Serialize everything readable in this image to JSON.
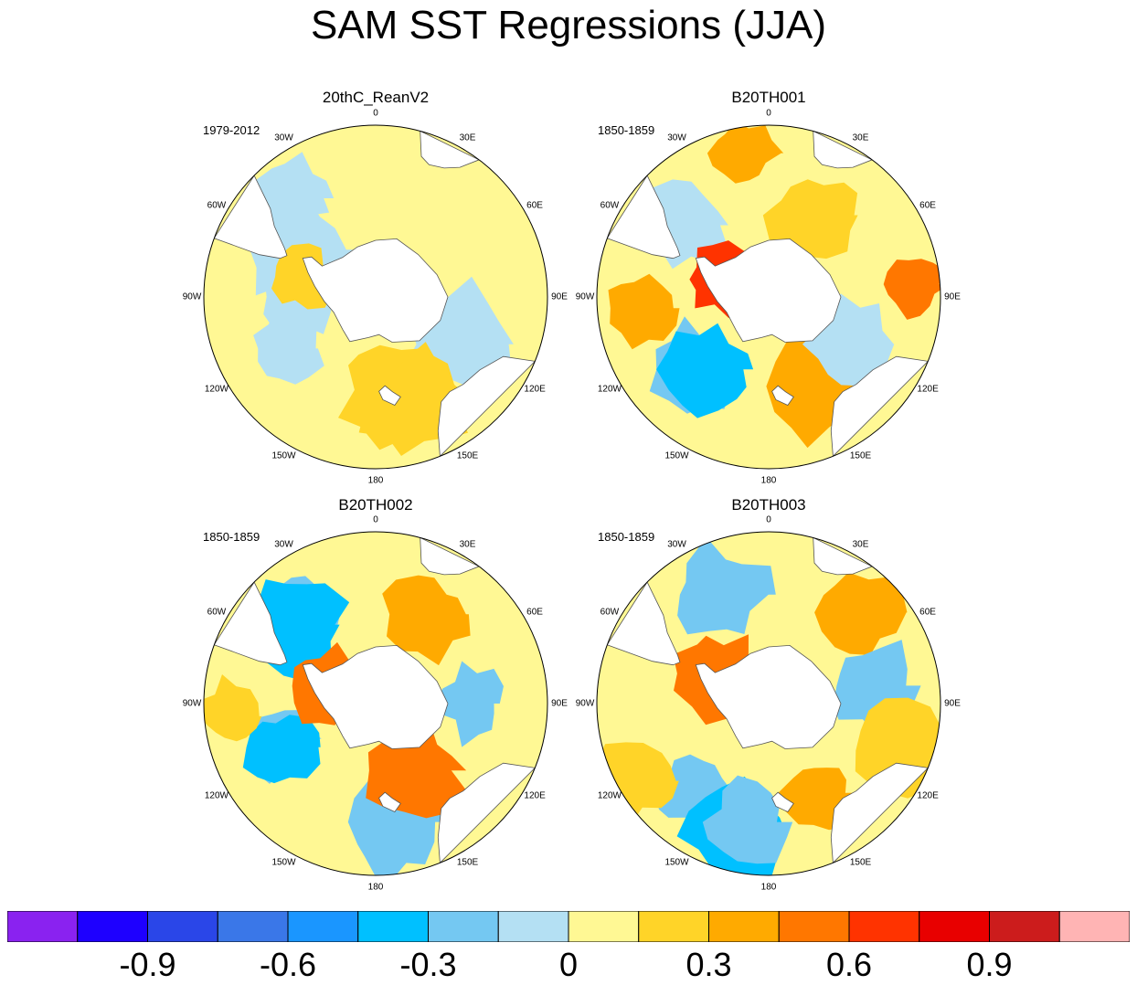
{
  "chart_data": {
    "type": "heatmap",
    "title": "SAM SST Regressions (JJA)",
    "projection": "south-polar-stereographic",
    "longitude_labels": [
      "0",
      "30E",
      "60E",
      "90E",
      "120E",
      "150E",
      "180",
      "150W",
      "120W",
      "90W",
      "60W",
      "30W"
    ],
    "panels": [
      {
        "name": "20thC_ReanV2",
        "period": "1979-2012",
        "blobs": [
          {
            "lon": -60,
            "r": 0.55,
            "v": -0.15
          },
          {
            "lon": -120,
            "r": 0.6,
            "v": -0.15
          },
          {
            "lon": -90,
            "r": 0.45,
            "v": -0.15
          },
          {
            "lon": 120,
            "r": 0.55,
            "v": -0.15
          },
          {
            "lon": -40,
            "r": 0.75,
            "v": -0.15
          },
          {
            "lon": 170,
            "r": 0.55,
            "v": 0.2
          },
          {
            "lon": -75,
            "r": 0.45,
            "v": 0.2
          },
          {
            "lon": 160,
            "r": 0.65,
            "v": 0.2
          }
        ]
      },
      {
        "name": "B20TH001",
        "period": "1850-1859",
        "blobs": [
          {
            "lon": -10,
            "r": 0.85,
            "v": 0.4
          },
          {
            "lon": 85,
            "r": 0.85,
            "v": 0.45
          },
          {
            "lon": -95,
            "r": 0.75,
            "v": 0.35
          },
          {
            "lon": -135,
            "r": 0.6,
            "v": -0.25
          },
          {
            "lon": -140,
            "r": 0.55,
            "v": -0.4
          },
          {
            "lon": -50,
            "r": 0.65,
            "v": -0.15
          },
          {
            "lon": 150,
            "r": 0.6,
            "v": 0.3
          },
          {
            "lon": -70,
            "r": 0.3,
            "v": 0.6
          },
          {
            "lon": 120,
            "r": 0.55,
            "v": -0.15
          },
          {
            "lon": 30,
            "r": 0.55,
            "v": 0.2
          }
        ]
      },
      {
        "name": "B20TH002",
        "period": "1850-1859",
        "blobs": [
          {
            "lon": -40,
            "r": 0.7,
            "v": -0.25
          },
          {
            "lon": -45,
            "r": 0.65,
            "v": -0.4
          },
          {
            "lon": -110,
            "r": 0.6,
            "v": -0.3
          },
          {
            "lon": -115,
            "r": 0.6,
            "v": -0.45
          },
          {
            "lon": 170,
            "r": 0.7,
            "v": -0.25
          },
          {
            "lon": 90,
            "r": 0.55,
            "v": -0.25
          },
          {
            "lon": 30,
            "r": 0.6,
            "v": 0.3
          },
          {
            "lon": -70,
            "r": 0.3,
            "v": 0.45
          },
          {
            "lon": 150,
            "r": 0.45,
            "v": 0.45
          },
          {
            "lon": -95,
            "r": 0.85,
            "v": 0.2
          }
        ]
      },
      {
        "name": "B20TH003",
        "period": "1850-1859",
        "blobs": [
          {
            "lon": 45,
            "r": 0.75,
            "v": 0.4
          },
          {
            "lon": -25,
            "r": 0.7,
            "v": -0.25
          },
          {
            "lon": -140,
            "r": 0.65,
            "v": -0.3
          },
          {
            "lon": -165,
            "r": 0.8,
            "v": -0.45
          },
          {
            "lon": -170,
            "r": 0.7,
            "v": -0.3
          },
          {
            "lon": 80,
            "r": 0.6,
            "v": -0.3
          },
          {
            "lon": 150,
            "r": 0.6,
            "v": 0.3
          },
          {
            "lon": -60,
            "r": 0.35,
            "v": 0.55
          },
          {
            "lon": 110,
            "r": 0.8,
            "v": 0.2
          },
          {
            "lon": -120,
            "r": 0.9,
            "v": 0.25
          }
        ]
      }
    ],
    "colorbar": {
      "colors": [
        "#8a22f0",
        "#1e00ff",
        "#2a46e8",
        "#3a77e8",
        "#1a96ff",
        "#00c0ff",
        "#74c8f2",
        "#b4e0f3",
        "#fff894",
        "#ffd428",
        "#ffaa00",
        "#ff7700",
        "#ff3300",
        "#e80000",
        "#cc1c1c",
        "#ffb4b4"
      ],
      "ticks": [
        "-0.9",
        "-0.6",
        "-0.3",
        "0",
        "0.3",
        "0.6",
        "0.9"
      ],
      "levels": [
        -1.05,
        -0.9,
        -0.75,
        -0.6,
        -0.45,
        -0.3,
        -0.15,
        0,
        0.15,
        0.3,
        0.45,
        0.6,
        0.75,
        0.9,
        1.05
      ]
    }
  }
}
